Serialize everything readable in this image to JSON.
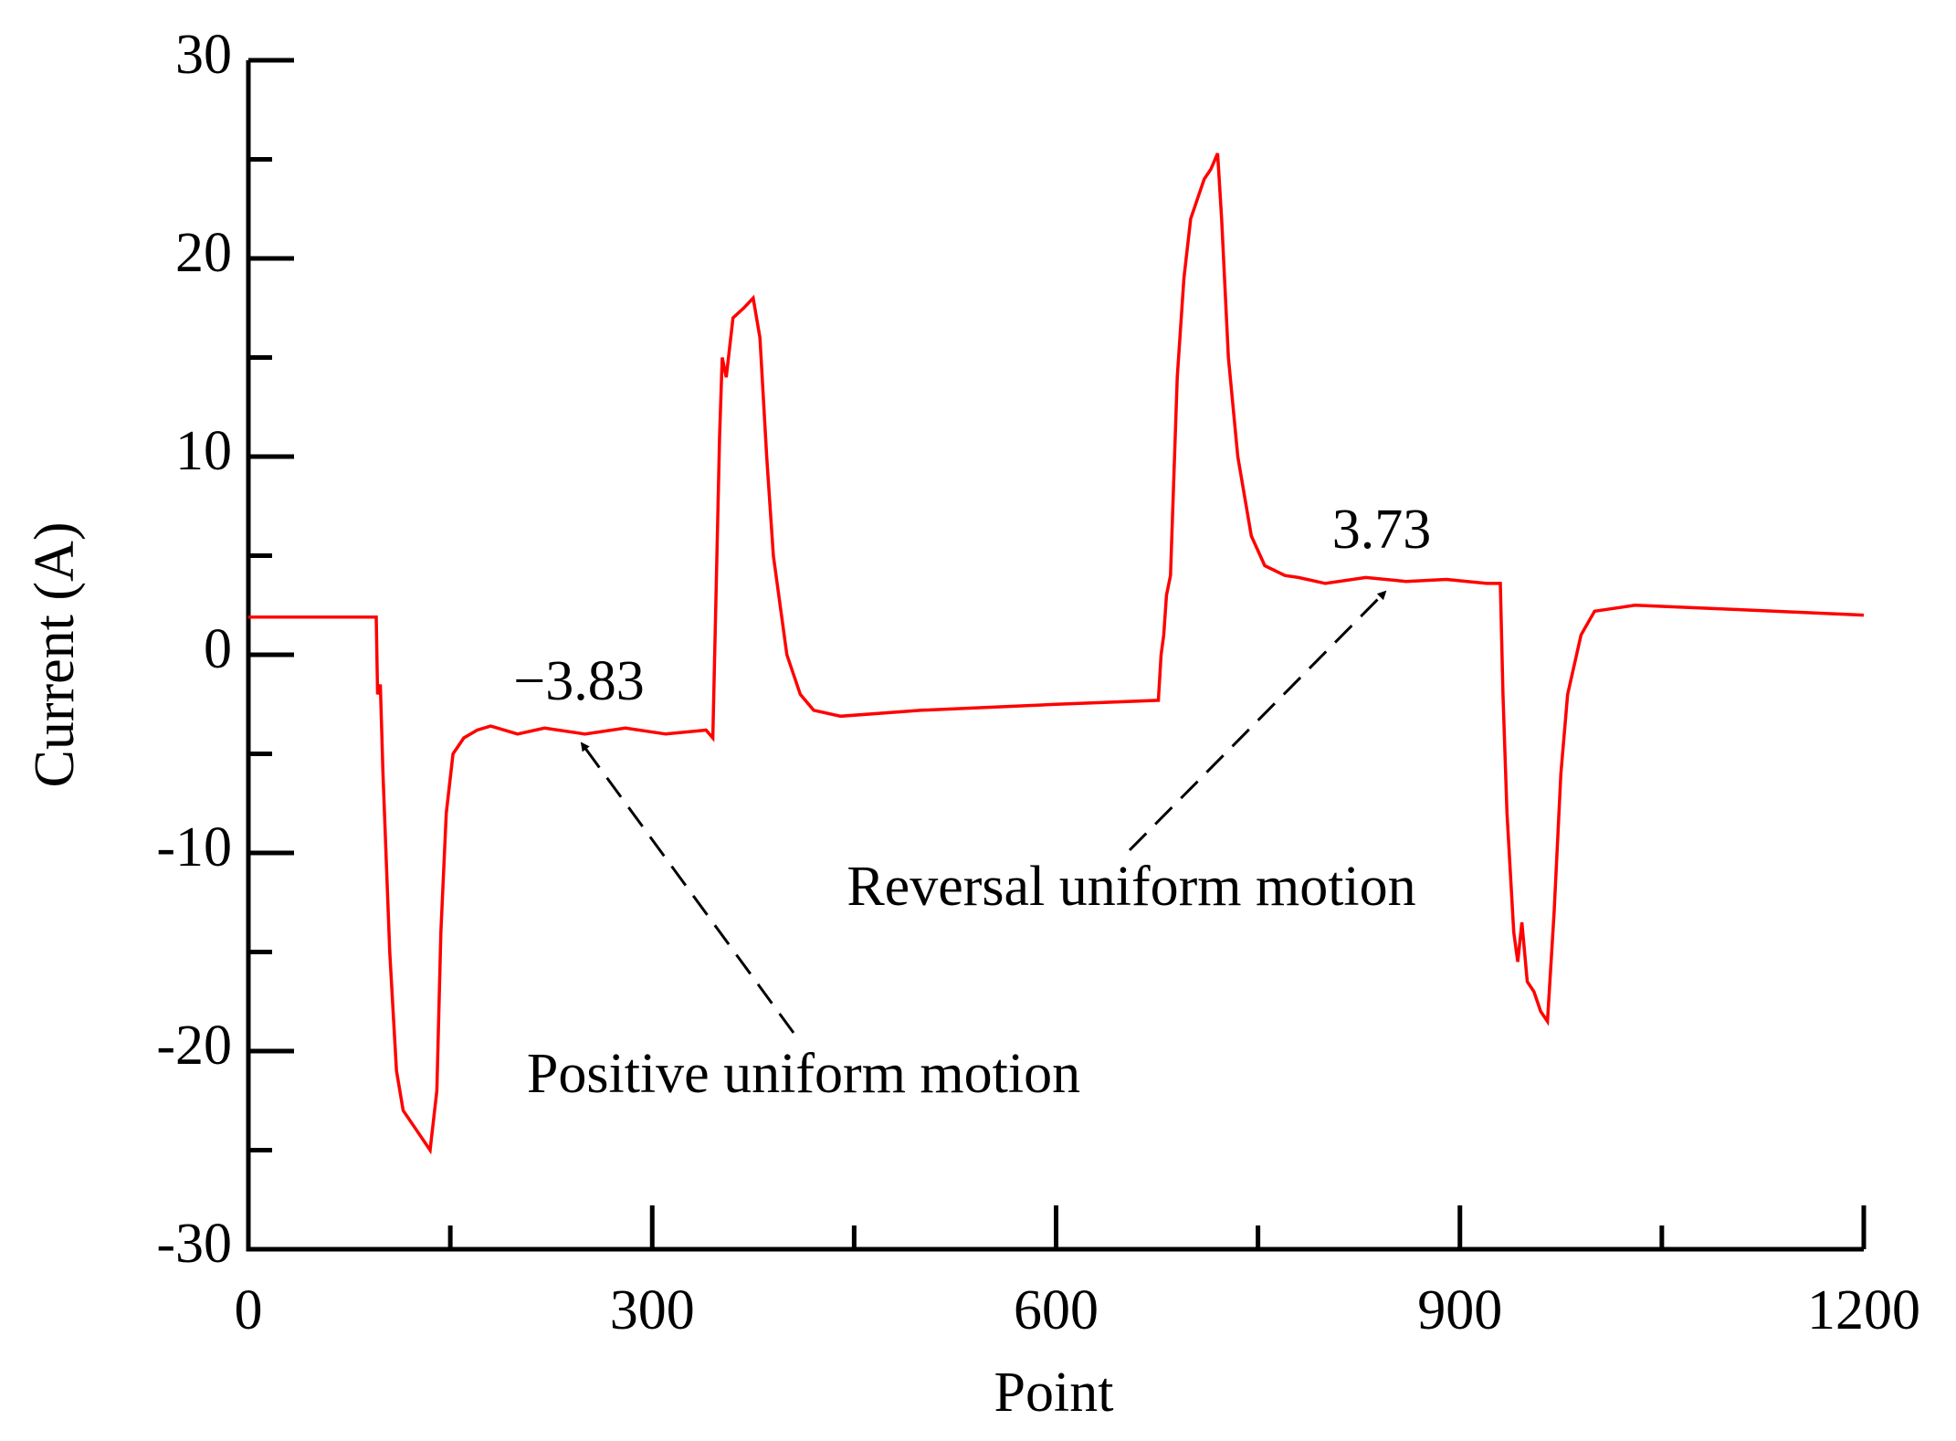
{
  "chart_data": {
    "type": "line",
    "x_label": "Point",
    "y_label": "Current (A)",
    "xlim": [
      0,
      1200
    ],
    "xticks": [
      0,
      300,
      600,
      900,
      1200
    ],
    "xminorticks": [
      150,
      450,
      750,
      1050
    ],
    "ylim": [
      -30,
      30
    ],
    "yticks": [
      -30,
      -20,
      -10,
      0,
      10,
      20,
      30
    ],
    "yminorticks": [
      -25,
      -15,
      -5,
      5,
      15,
      25
    ],
    "x": [
      0,
      95,
      96,
      98,
      100,
      105,
      110,
      115,
      125,
      135,
      140,
      143,
      147,
      152,
      160,
      170,
      180,
      200,
      220,
      250,
      280,
      310,
      340,
      345,
      350,
      352,
      355,
      360,
      368,
      375,
      380,
      385,
      390,
      400,
      410,
      420,
      440,
      500,
      600,
      676,
      678,
      680,
      682,
      685,
      690,
      695,
      700,
      710,
      715,
      720,
      723,
      728,
      735,
      745,
      755,
      770,
      780,
      800,
      830,
      860,
      890,
      920,
      930,
      932,
      935,
      940,
      943,
      946,
      950,
      955,
      960,
      965,
      970,
      975,
      980,
      990,
      1000,
      1030,
      1100,
      1200
    ],
    "series": [
      {
        "name": "Current",
        "color": "#ff0000",
        "values": [
          1.9,
          1.9,
          -2,
          -1.5,
          -6,
          -15,
          -21,
          -23,
          -24,
          -25,
          -22,
          -14,
          -8,
          -5,
          -4.2,
          -3.8,
          -3.6,
          -4.0,
          -3.7,
          -4.0,
          -3.7,
          -4.0,
          -3.8,
          -4.2,
          11,
          15,
          14,
          17,
          17.5,
          18,
          16,
          10,
          5,
          0,
          -2,
          -2.8,
          -3.1,
          -2.8,
          -2.5,
          -2.3,
          0,
          1,
          3,
          4,
          14,
          19,
          22,
          24,
          24.5,
          25.3,
          22,
          15,
          10,
          6,
          4.5,
          4,
          3.9,
          3.6,
          3.9,
          3.7,
          3.8,
          3.6,
          3.6,
          -2,
          -8,
          -14,
          -15.5,
          -13.5,
          -16.5,
          -17,
          -18,
          -18.5,
          -13,
          -6,
          -2,
          1,
          2.2,
          2.5,
          2.3,
          2.0
        ]
      }
    ],
    "annotations": [
      {
        "text": "−3.83"
      },
      {
        "text": "3.73"
      },
      {
        "text": "Positive uniform motion"
      },
      {
        "text": "Reversal uniform motion"
      }
    ]
  }
}
